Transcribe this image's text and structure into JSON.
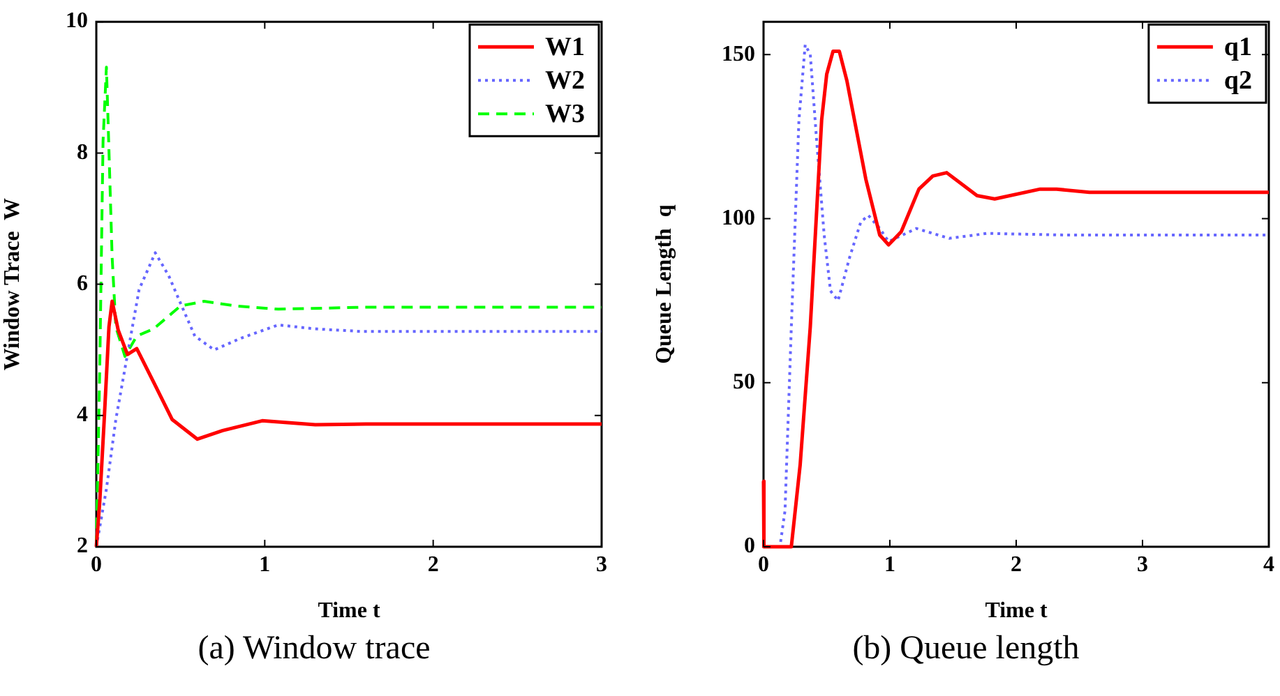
{
  "chart_data": [
    {
      "type": "line",
      "xlabel": "Time t",
      "ylabel": "Window Trace  W",
      "annotations": [
        "(a) Window trace"
      ],
      "xlim": [
        0,
        3
      ],
      "xticks": [
        0,
        1,
        2,
        3
      ],
      "ylim": [
        2,
        10
      ],
      "yticks": [
        2,
        4,
        6,
        8,
        10
      ],
      "grid": false,
      "legend": "top right",
      "marker": "none",
      "series": [
        {
          "name": "W1",
          "color": "#ff0000",
          "line_style": "solid",
          "x": [
            0,
            0.02,
            0.047,
            0.075,
            0.094,
            0.13,
            0.185,
            0.24,
            0.34,
            0.45,
            0.6,
            0.75,
            0.985,
            1.3,
            1.6,
            2,
            3
          ],
          "values": [
            2,
            2.67,
            3.94,
            5.35,
            5.74,
            5.3,
            4.93,
            5.02,
            4.51,
            3.94,
            3.64,
            3.77,
            3.92,
            3.86,
            3.87,
            3.87,
            3.87
          ]
        },
        {
          "name": "W2",
          "color": "#6666ff",
          "line_style": "dotted",
          "x": [
            0,
            0.06,
            0.116,
            0.185,
            0.254,
            0.35,
            0.43,
            0.5,
            0.585,
            0.7,
            0.86,
            1.08,
            1.3,
            1.58,
            2,
            3
          ],
          "values": [
            2,
            2.88,
            3.94,
            4.93,
            5.92,
            6.48,
            6.13,
            5.71,
            5.21,
            5.0,
            5.18,
            5.38,
            5.32,
            5.28,
            5.28,
            5.28
          ]
        },
        {
          "name": "W3",
          "color": "#00ff00",
          "line_style": "dashed",
          "x": [
            0,
            0.02,
            0.04,
            0.06,
            0.075,
            0.094,
            0.116,
            0.17,
            0.24,
            0.34,
            0.5,
            0.64,
            0.83,
            1.08,
            1.58,
            2,
            3
          ],
          "values": [
            2,
            4.65,
            8.18,
            9.31,
            8.04,
            6.41,
            5.35,
            4.9,
            5.21,
            5.32,
            5.67,
            5.74,
            5.67,
            5.62,
            5.65,
            5.65,
            5.65
          ]
        }
      ]
    },
    {
      "type": "line",
      "xlabel": "Time t",
      "ylabel": "Queue Length  q",
      "annotations": [
        "(b) Queue length"
      ],
      "xlim": [
        0,
        4
      ],
      "xticks": [
        0,
        1,
        2,
        3,
        4
      ],
      "ylim": [
        0,
        160
      ],
      "yticks": [
        0,
        50,
        100,
        150
      ],
      "grid": false,
      "legend": "top right",
      "marker": "none",
      "series": [
        {
          "name": "q1",
          "color": "#ff0000",
          "line_style": "solid",
          "x": [
            0,
            0.003,
            0.22,
            0.29,
            0.37,
            0.46,
            0.5,
            0.55,
            0.6,
            0.66,
            0.81,
            0.92,
            0.99,
            1.09,
            1.23,
            1.34,
            1.45,
            1.69,
            1.83,
            2.19,
            2.32,
            2.58,
            2.98,
            4
          ],
          "values": [
            20,
            0,
            0,
            25,
            67,
            130,
            144,
            151,
            151,
            142,
            112,
            95,
            92,
            96,
            109,
            113,
            114,
            107,
            106,
            109,
            109,
            108,
            108,
            108
          ]
        },
        {
          "name": "q2",
          "color": "#6666ff",
          "line_style": "dotted",
          "x": [
            0.003,
            0.13,
            0.17,
            0.22,
            0.28,
            0.33,
            0.37,
            0.42,
            0.48,
            0.53,
            0.59,
            0.68,
            0.77,
            0.83,
            0.92,
            0.99,
            1.21,
            1.47,
            1.77,
            2.39,
            4
          ],
          "values": [
            0,
            0,
            11,
            67,
            130,
            153,
            150,
            124,
            95,
            78,
            75,
            88,
            99,
            101,
            97,
            93,
            97,
            94,
            95.5,
            95,
            95
          ]
        }
      ]
    }
  ]
}
